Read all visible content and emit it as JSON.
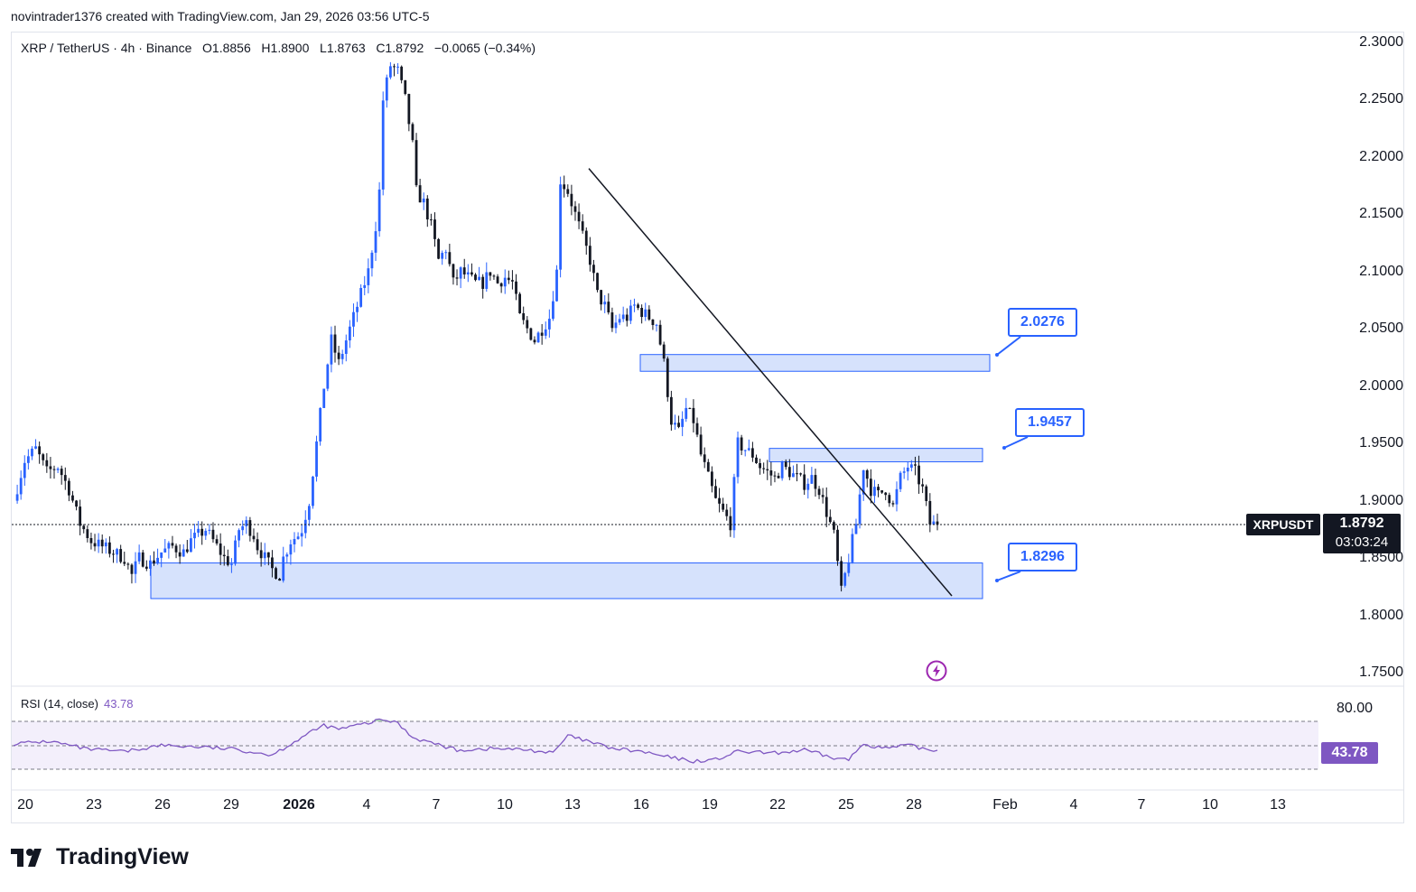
{
  "header": {
    "credit": "novintrader1376 created with TradingView.com, Jan 29, 2026 03:56 UTC-5"
  },
  "legend": {
    "symbol": "XRP / TetherUS · 4h · Binance",
    "open": "O1.8856",
    "high": "H1.8900",
    "low": "L1.8763",
    "close": "C1.8792",
    "change": "−0.0065 (−0.34%)"
  },
  "rsi_legend": {
    "label": "RSI (14, close)",
    "value": "43.78"
  },
  "badges": {
    "symbol": "XRPUSDT",
    "price": "1.8792",
    "countdown": "03:03:24",
    "rsi": "43.78",
    "rsi_upper": "80.00"
  },
  "callouts": [
    {
      "label": "2.0276",
      "price": 2.0276
    },
    {
      "label": "1.9457",
      "price": 1.9457
    },
    {
      "label": "1.8296",
      "price": 1.8296
    }
  ],
  "brand": {
    "name": "TradingView"
  },
  "colors": {
    "up": "#2962ff",
    "down": "#131722",
    "zone_fill": "#d6e2fc",
    "zone_border": "#2962ff",
    "rsi_line": "#7e57c2",
    "rsi_band": "#f3effb",
    "ob_fill": "#a5d6a7"
  },
  "chart_data": {
    "type": "candlestick",
    "symbol": "XRP / TetherUS",
    "timeframe": "4h",
    "y_ticks": [
      "2.3000",
      "2.2500",
      "2.2000",
      "2.1500",
      "2.1000",
      "2.0500",
      "2.0000",
      "1.9500",
      "1.9000",
      "1.8500",
      "1.8000",
      "1.7500"
    ],
    "ylim": [
      1.75,
      2.3
    ],
    "x_ticks": [
      "20",
      "23",
      "26",
      "29",
      "2026",
      "4",
      "7",
      "10",
      "13",
      "16",
      "19",
      "22",
      "25",
      "28",
      "Feb",
      "4",
      "7",
      "10",
      "13"
    ],
    "last_price": 1.8792,
    "path_points": [
      [
        0,
        1.9
      ],
      [
        3,
        1.935
      ],
      [
        6,
        1.945
      ],
      [
        9,
        1.925
      ],
      [
        12,
        1.93
      ],
      [
        15,
        1.91
      ],
      [
        18,
        1.88
      ],
      [
        21,
        1.865
      ],
      [
        24,
        1.86
      ],
      [
        27,
        1.855
      ],
      [
        30,
        1.85
      ],
      [
        32,
        1.835
      ],
      [
        34,
        1.85
      ],
      [
        37,
        1.845
      ],
      [
        40,
        1.855
      ],
      [
        43,
        1.86
      ],
      [
        46,
        1.855
      ],
      [
        48,
        1.865
      ],
      [
        50,
        1.87
      ],
      [
        52,
        1.875
      ],
      [
        54,
        1.865
      ],
      [
        55,
        1.86
      ],
      [
        57,
        1.85
      ],
      [
        59,
        1.845
      ],
      [
        61,
        1.875
      ],
      [
        63,
        1.88
      ],
      [
        65,
        1.87
      ],
      [
        66,
        1.86
      ],
      [
        68,
        1.85
      ],
      [
        70,
        1.84
      ],
      [
        72,
        1.835
      ],
      [
        73,
        1.85
      ],
      [
        75,
        1.865
      ],
      [
        77,
        1.87
      ],
      [
        78,
        1.875
      ],
      [
        80,
        1.9
      ],
      [
        82,
        1.95
      ],
      [
        84,
        2.0
      ],
      [
        86,
        2.04
      ],
      [
        88,
        2.02
      ],
      [
        90,
        2.04
      ],
      [
        92,
        2.06
      ],
      [
        94,
        2.08
      ],
      [
        96,
        2.1
      ],
      [
        98,
        2.14
      ],
      [
        99,
        2.17
      ],
      [
        100,
        2.25
      ],
      [
        102,
        2.28
      ],
      [
        104,
        2.275
      ],
      [
        106,
        2.25
      ],
      [
        108,
        2.21
      ],
      [
        109,
        2.17
      ],
      [
        111,
        2.16
      ],
      [
        113,
        2.14
      ],
      [
        115,
        2.11
      ],
      [
        117,
        2.12
      ],
      [
        119,
        2.09
      ],
      [
        121,
        2.1
      ],
      [
        123,
        2.095
      ],
      [
        125,
        2.09
      ],
      [
        127,
        2.09
      ],
      [
        129,
        2.1
      ],
      [
        131,
        2.09
      ],
      [
        133,
        2.095
      ],
      [
        135,
        2.09
      ],
      [
        137,
        2.06
      ],
      [
        139,
        2.05
      ],
      [
        141,
        2.04
      ],
      [
        143,
        2.05
      ],
      [
        145,
        2.06
      ],
      [
        147,
        2.1
      ],
      [
        148,
        2.18
      ],
      [
        150,
        2.17
      ],
      [
        152,
        2.15
      ],
      [
        154,
        2.13
      ],
      [
        156,
        2.11
      ],
      [
        158,
        2.08
      ],
      [
        160,
        2.07
      ],
      [
        162,
        2.05
      ],
      [
        164,
        2.06
      ],
      [
        166,
        2.06
      ],
      [
        168,
        2.07
      ],
      [
        170,
        2.065
      ],
      [
        172,
        2.06
      ],
      [
        174,
        2.055
      ],
      [
        176,
        2.02
      ],
      [
        178,
        1.97
      ],
      [
        180,
        1.96
      ],
      [
        182,
        1.98
      ],
      [
        184,
        1.97
      ],
      [
        186,
        1.94
      ],
      [
        188,
        1.92
      ],
      [
        190,
        1.9
      ],
      [
        192,
        1.89
      ],
      [
        194,
        1.88
      ],
      [
        196,
        1.95
      ],
      [
        198,
        1.945
      ],
      [
        200,
        1.94
      ],
      [
        202,
        1.93
      ],
      [
        204,
        1.925
      ],
      [
        206,
        1.92
      ],
      [
        208,
        1.93
      ],
      [
        210,
        1.925
      ],
      [
        212,
        1.92
      ],
      [
        214,
        1.915
      ],
      [
        216,
        1.92
      ],
      [
        218,
        1.91
      ],
      [
        220,
        1.89
      ],
      [
        222,
        1.87
      ],
      [
        224,
        1.82
      ],
      [
        226,
        1.85
      ],
      [
        228,
        1.88
      ],
      [
        230,
        1.93
      ],
      [
        232,
        1.91
      ],
      [
        234,
        1.905
      ],
      [
        236,
        1.91
      ],
      [
        238,
        1.895
      ],
      [
        240,
        1.92
      ],
      [
        242,
        1.93
      ],
      [
        244,
        1.925
      ],
      [
        246,
        1.91
      ],
      [
        248,
        1.88
      ],
      [
        250,
        1.8792
      ]
    ],
    "zones": [
      {
        "top": 2.0276,
        "bottom": 2.013
      },
      {
        "top": 1.9457,
        "bottom": 1.934
      },
      {
        "top": 1.8457,
        "bottom": 1.8146
      }
    ],
    "trendline": {
      "from": {
        "day": "13",
        "price": 2.19
      },
      "to": {
        "day": "30",
        "price": 1.817
      }
    },
    "rsi": {
      "value": 43.78,
      "upper": 80,
      "lower": 20,
      "mid": 50,
      "points": [
        [
          0,
          52
        ],
        [
          10,
          55
        ],
        [
          20,
          45
        ],
        [
          30,
          42
        ],
        [
          40,
          50
        ],
        [
          50,
          48
        ],
        [
          60,
          45
        ],
        [
          70,
          38
        ],
        [
          78,
          60
        ],
        [
          84,
          75
        ],
        [
          88,
          70
        ],
        [
          94,
          76
        ],
        [
          100,
          82
        ],
        [
          104,
          78
        ],
        [
          108,
          60
        ],
        [
          114,
          52
        ],
        [
          120,
          44
        ],
        [
          130,
          46
        ],
        [
          140,
          44
        ],
        [
          146,
          40
        ],
        [
          150,
          62
        ],
        [
          156,
          54
        ],
        [
          162,
          46
        ],
        [
          170,
          42
        ],
        [
          176,
          36
        ],
        [
          184,
          30
        ],
        [
          190,
          32
        ],
        [
          196,
          42
        ],
        [
          206,
          40
        ],
        [
          214,
          44
        ],
        [
          222,
          34
        ],
        [
          226,
          32
        ],
        [
          230,
          52
        ],
        [
          236,
          46
        ],
        [
          242,
          50
        ],
        [
          248,
          44
        ],
        [
          250,
          43.78
        ]
      ]
    }
  }
}
